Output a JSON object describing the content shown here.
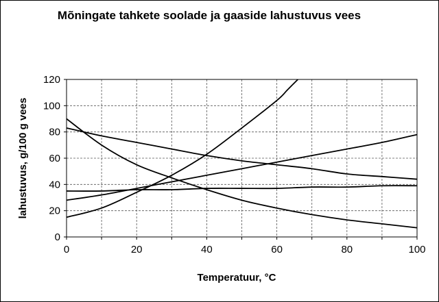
{
  "chart_data": {
    "type": "line",
    "title": "Mõningate tahkete soolade ja gaaside lahustuvus vees",
    "xlabel": "Temperatuur, °C",
    "ylabel": "lahustuvus, g/100 g vees",
    "xlim": [
      0,
      100
    ],
    "ylim": [
      0,
      120
    ],
    "x_ticks": [
      "0",
      "20",
      "40",
      "60",
      "80",
      "100"
    ],
    "y_ticks": [
      "0",
      "20",
      "40",
      "60",
      "80",
      "100",
      "120"
    ],
    "grid": true,
    "legend": "none",
    "series": [
      {
        "x": [
          0,
          10,
          20,
          30,
          40,
          50,
          60,
          63,
          66
        ],
        "y": [
          15,
          22,
          34,
          47,
          63,
          83,
          104,
          112,
          120
        ]
      },
      {
        "x": [
          0,
          10,
          20,
          30,
          40,
          50,
          60,
          70,
          80,
          90,
          100
        ],
        "y": [
          28,
          32,
          37,
          42,
          47,
          52,
          57,
          62,
          67,
          72,
          78
        ]
      },
      {
        "x": [
          0,
          10,
          20,
          30,
          40,
          50,
          60,
          70,
          80,
          90,
          100
        ],
        "y": [
          83,
          77,
          72,
          67,
          62,
          58,
          55,
          52,
          48,
          46,
          44
        ]
      },
      {
        "x": [
          0,
          10,
          20,
          30,
          40,
          50,
          60,
          70,
          80,
          90,
          100
        ],
        "y": [
          90,
          70,
          55,
          45,
          36,
          28,
          22,
          17,
          13,
          10,
          7
        ]
      },
      {
        "x": [
          0,
          10,
          20,
          30,
          40,
          50,
          60,
          70,
          80,
          90,
          100
        ],
        "y": [
          35,
          35,
          36,
          36,
          37,
          37,
          37,
          38,
          38,
          39,
          39
        ]
      }
    ]
  }
}
